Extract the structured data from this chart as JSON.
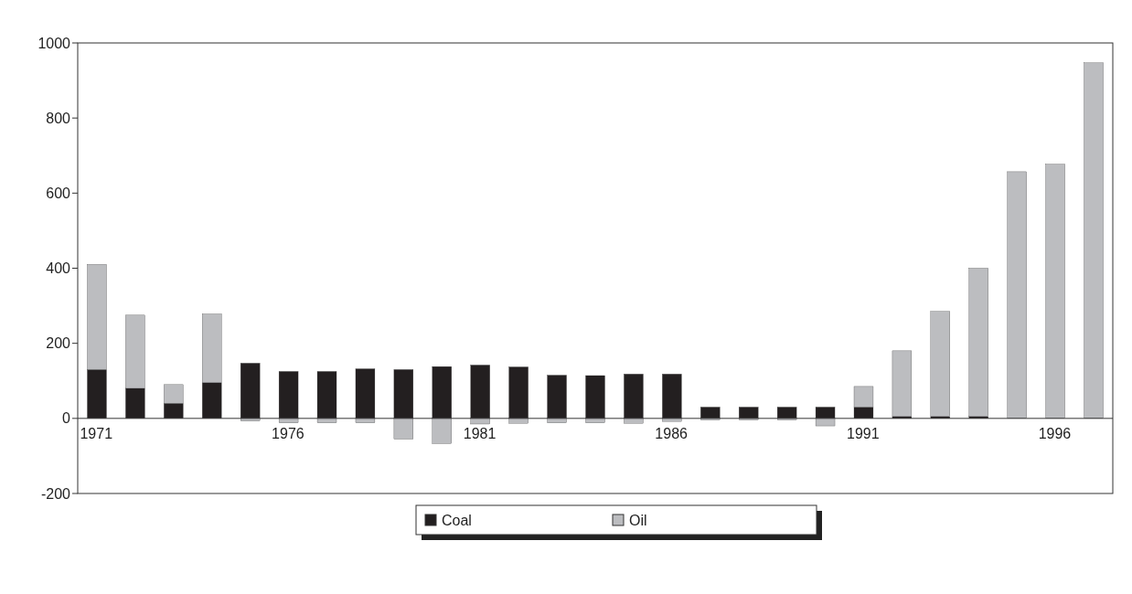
{
  "chart_data": {
    "type": "bar",
    "stacked": true,
    "categories": [
      "1971",
      null,
      null,
      null,
      null,
      "1976",
      null,
      null,
      null,
      null,
      "1981",
      null,
      null,
      null,
      null,
      "1986",
      null,
      null,
      null,
      null,
      "1991",
      null,
      null,
      null,
      null,
      "1996",
      null
    ],
    "series": [
      {
        "name": "Coal",
        "color": "#231f20",
        "values": [
          130,
          80,
          40,
          95,
          147,
          125,
          125,
          132,
          130,
          138,
          142,
          137,
          115,
          114,
          118,
          118,
          30,
          30,
          30,
          30,
          30,
          5,
          5,
          5,
          0,
          0,
          0
        ]
      },
      {
        "name": "Oil",
        "color": "#bcbdc0",
        "values": [
          280,
          195,
          50,
          183,
          -7,
          -12,
          -12,
          -12,
          -55,
          -67,
          -15,
          -13,
          -12,
          -12,
          -13,
          -8,
          -4,
          -4,
          -4,
          -20,
          55,
          175,
          280,
          395,
          657,
          677,
          947
        ]
      }
    ],
    "ylim": [
      -200,
      1000
    ],
    "yticks": [
      -200,
      0,
      200,
      400,
      600,
      800,
      1000
    ],
    "grid": false,
    "legend": "bottom"
  }
}
